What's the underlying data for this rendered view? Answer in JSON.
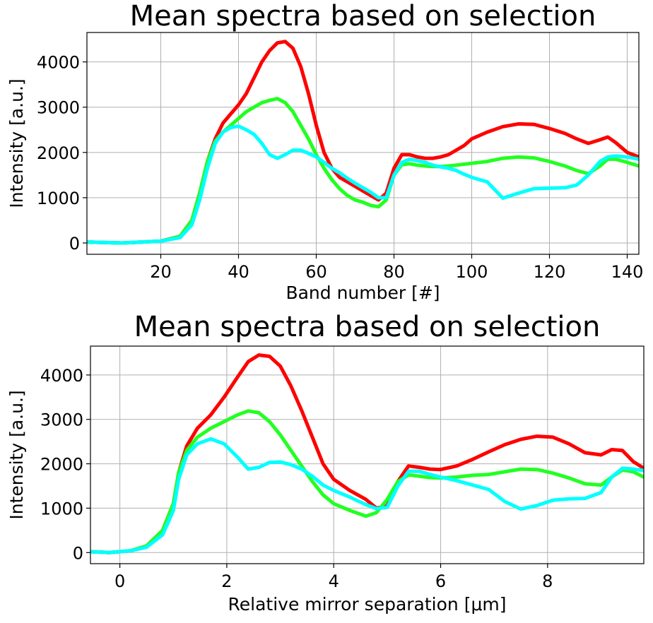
{
  "chart_data": [
    {
      "type": "line",
      "title": "Mean spectra based on selection",
      "xlabel": "Band number [#]",
      "ylabel": "Intensity [a.u.]",
      "xlim": [
        1,
        143
      ],
      "ylim": [
        -250,
        4650
      ],
      "xticks": [
        20,
        40,
        60,
        80,
        100,
        120,
        140
      ],
      "yticks": [
        0,
        1000,
        2000,
        3000,
        4000
      ],
      "grid": true,
      "series": [
        {
          "color": "#ff0000",
          "x": [
            1,
            10,
            20,
            25,
            28,
            30,
            32,
            34,
            36,
            38,
            40,
            42,
            44,
            46,
            48,
            50,
            52,
            54,
            56,
            58,
            60,
            62,
            64,
            66,
            68,
            70,
            72,
            74,
            76,
            78,
            80,
            82,
            84,
            86,
            88,
            90,
            92,
            94,
            96,
            98,
            100,
            104,
            108,
            112,
            116,
            120,
            124,
            127,
            130,
            133,
            135,
            137,
            140,
            143
          ],
          "y": [
            20,
            0,
            40,
            150,
            500,
            1100,
            1800,
            2300,
            2650,
            2850,
            3050,
            3300,
            3650,
            4000,
            4250,
            4420,
            4450,
            4300,
            3900,
            3300,
            2600,
            2000,
            1650,
            1450,
            1350,
            1250,
            1150,
            1050,
            950,
            1100,
            1650,
            1950,
            1950,
            1900,
            1870,
            1870,
            1900,
            1950,
            2050,
            2150,
            2300,
            2450,
            2570,
            2630,
            2620,
            2530,
            2420,
            2300,
            2200,
            2280,
            2340,
            2220,
            2000,
            1900
          ]
        },
        {
          "color": "#22ff22",
          "x": [
            1,
            10,
            20,
            25,
            28,
            30,
            32,
            34,
            36,
            38,
            40,
            42,
            44,
            46,
            48,
            50,
            52,
            54,
            56,
            58,
            60,
            62,
            64,
            66,
            68,
            70,
            72,
            74,
            76,
            78,
            80,
            82,
            84,
            86,
            88,
            90,
            92,
            94,
            96,
            98,
            100,
            104,
            108,
            112,
            116,
            120,
            124,
            127,
            130,
            133,
            135,
            137,
            140,
            143
          ],
          "y": [
            20,
            0,
            40,
            150,
            500,
            1100,
            1800,
            2250,
            2450,
            2600,
            2750,
            2900,
            3000,
            3100,
            3150,
            3190,
            3100,
            2900,
            2600,
            2300,
            1950,
            1650,
            1400,
            1200,
            1050,
            950,
            900,
            830,
            800,
            950,
            1500,
            1730,
            1750,
            1720,
            1700,
            1690,
            1690,
            1700,
            1720,
            1740,
            1760,
            1800,
            1870,
            1900,
            1880,
            1800,
            1700,
            1600,
            1530,
            1700,
            1850,
            1850,
            1780,
            1700
          ]
        },
        {
          "color": "#00ffff",
          "x": [
            1,
            10,
            20,
            25,
            28,
            30,
            32,
            34,
            36,
            38,
            40,
            42,
            44,
            46,
            48,
            50,
            52,
            54,
            56,
            58,
            60,
            62,
            64,
            66,
            68,
            70,
            72,
            74,
            76,
            78,
            80,
            82,
            84,
            86,
            88,
            90,
            92,
            94,
            96,
            98,
            100,
            104,
            108,
            112,
            116,
            120,
            124,
            127,
            130,
            133,
            135,
            137,
            140,
            143
          ],
          "y": [
            20,
            0,
            40,
            120,
            400,
            950,
            1650,
            2200,
            2450,
            2550,
            2580,
            2500,
            2400,
            2200,
            1950,
            1870,
            1950,
            2050,
            2050,
            1980,
            1900,
            1780,
            1650,
            1550,
            1430,
            1320,
            1220,
            1120,
            1000,
            1000,
            1500,
            1780,
            1850,
            1820,
            1780,
            1720,
            1680,
            1650,
            1600,
            1520,
            1450,
            1350,
            990,
            1100,
            1200,
            1210,
            1220,
            1280,
            1500,
            1800,
            1900,
            1920,
            1900,
            1850
          ]
        }
      ]
    },
    {
      "type": "line",
      "title": "Mean spectra based on selection",
      "xlabel": "Relative mirror separation [μm]",
      "ylabel": "Intensity [a.u.]",
      "xlim": [
        -0.55,
        9.8
      ],
      "ylim": [
        -250,
        4650
      ],
      "xticks": [
        0,
        2,
        4,
        6,
        8
      ],
      "yticks": [
        0,
        1000,
        2000,
        3000,
        4000
      ],
      "grid": true,
      "series": [
        {
          "color": "#ff0000",
          "x": [
            -0.55,
            -0.2,
            0.2,
            0.5,
            0.8,
            1.0,
            1.1,
            1.25,
            1.45,
            1.7,
            1.95,
            2.2,
            2.4,
            2.6,
            2.8,
            3.0,
            3.2,
            3.4,
            3.6,
            3.8,
            4.0,
            4.3,
            4.6,
            4.8,
            5.0,
            5.2,
            5.4,
            5.6,
            5.8,
            6.0,
            6.3,
            6.6,
            6.9,
            7.2,
            7.5,
            7.8,
            8.1,
            8.4,
            8.7,
            9.0,
            9.2,
            9.4,
            9.6,
            9.8
          ],
          "y": [
            20,
            0,
            40,
            150,
            500,
            1100,
            1800,
            2400,
            2800,
            3100,
            3500,
            3950,
            4300,
            4450,
            4420,
            4200,
            3750,
            3200,
            2600,
            2000,
            1650,
            1400,
            1200,
            1000,
            1050,
            1600,
            1950,
            1920,
            1880,
            1870,
            1950,
            2100,
            2270,
            2430,
            2550,
            2620,
            2600,
            2450,
            2250,
            2200,
            2320,
            2300,
            2050,
            1900
          ]
        },
        {
          "color": "#22ff22",
          "x": [
            -0.55,
            -0.2,
            0.2,
            0.5,
            0.8,
            1.0,
            1.1,
            1.25,
            1.45,
            1.7,
            1.95,
            2.2,
            2.4,
            2.6,
            2.8,
            3.0,
            3.2,
            3.4,
            3.6,
            3.8,
            4.0,
            4.3,
            4.6,
            4.8,
            5.0,
            5.2,
            5.4,
            5.6,
            5.8,
            6.0,
            6.3,
            6.6,
            6.9,
            7.2,
            7.5,
            7.8,
            8.1,
            8.4,
            8.7,
            9.0,
            9.2,
            9.4,
            9.6,
            9.8
          ],
          "y": [
            20,
            0,
            40,
            150,
            500,
            1100,
            1800,
            2300,
            2600,
            2800,
            2950,
            3100,
            3190,
            3150,
            2950,
            2650,
            2300,
            1950,
            1600,
            1300,
            1100,
            950,
            820,
            900,
            1200,
            1600,
            1750,
            1720,
            1690,
            1680,
            1700,
            1740,
            1760,
            1820,
            1880,
            1870,
            1790,
            1680,
            1550,
            1520,
            1700,
            1860,
            1820,
            1700
          ]
        },
        {
          "color": "#00ffff",
          "x": [
            -0.55,
            -0.2,
            0.2,
            0.5,
            0.8,
            1.0,
            1.1,
            1.25,
            1.45,
            1.7,
            1.95,
            2.2,
            2.4,
            2.6,
            2.8,
            3.0,
            3.2,
            3.4,
            3.6,
            3.8,
            4.0,
            4.3,
            4.6,
            4.8,
            5.0,
            5.2,
            5.4,
            5.6,
            5.8,
            6.0,
            6.3,
            6.6,
            6.9,
            7.2,
            7.5,
            7.8,
            8.1,
            8.4,
            8.7,
            9.0,
            9.2,
            9.4,
            9.6,
            9.8
          ],
          "y": [
            20,
            0,
            40,
            120,
            400,
            950,
            1650,
            2200,
            2450,
            2560,
            2450,
            2150,
            1880,
            1920,
            2030,
            2040,
            1980,
            1880,
            1720,
            1520,
            1400,
            1250,
            1080,
            990,
            1020,
            1500,
            1830,
            1830,
            1760,
            1700,
            1620,
            1520,
            1420,
            1150,
            980,
            1060,
            1180,
            1210,
            1220,
            1350,
            1700,
            1900,
            1880,
            1850
          ]
        }
      ]
    }
  ]
}
